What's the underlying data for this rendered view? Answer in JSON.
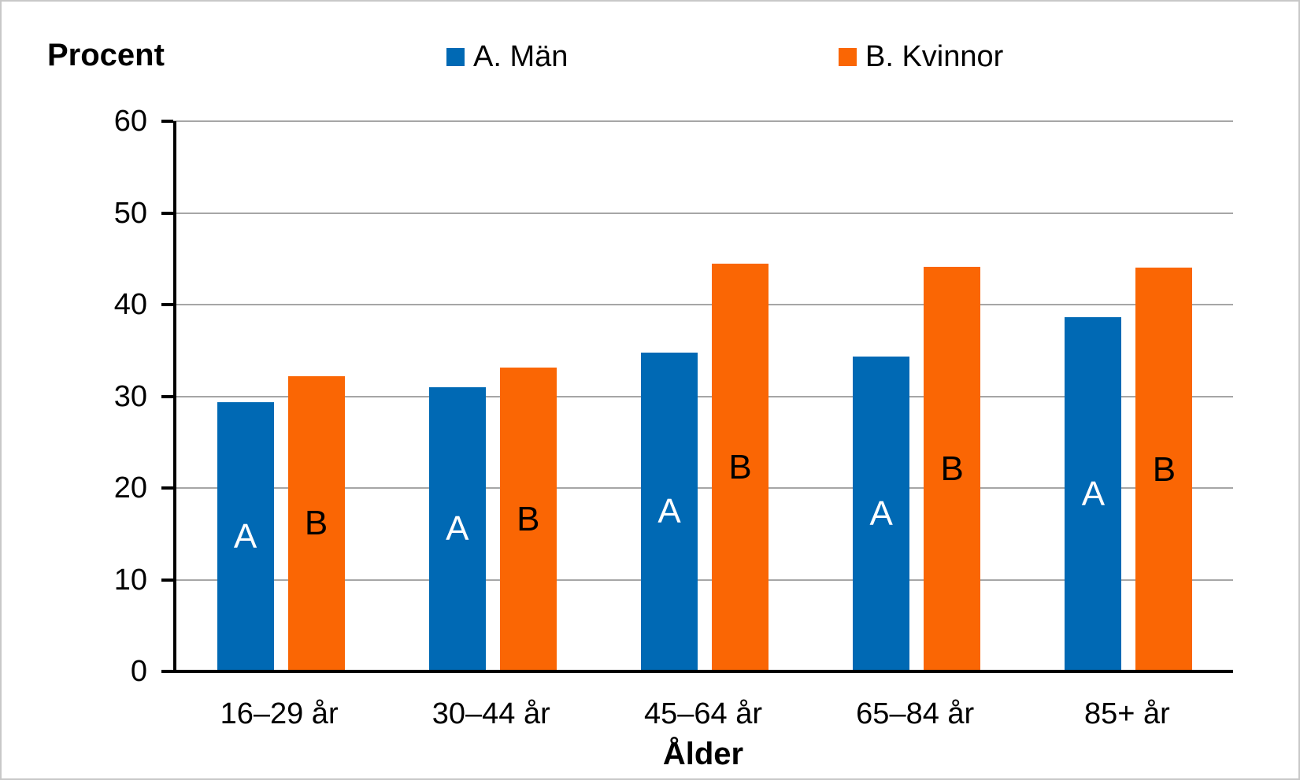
{
  "page": {
    "background": "#ffffff",
    "border_color": "#c8c8c8"
  },
  "chart_data": {
    "type": "bar",
    "y_axis_title": "Procent",
    "xlabel": "Ålder",
    "categories": [
      "16–29 år",
      "30–44 år",
      "45–64 år",
      "65–84 år",
      "85+ år"
    ],
    "series": [
      {
        "name": "A. Män",
        "bar_label": "A",
        "color": "#0069B4",
        "bar_label_color": "#ffffff",
        "values": [
          29.4,
          31.0,
          34.8,
          34.3,
          38.6
        ]
      },
      {
        "name": "B. Kvinnor",
        "bar_label": "B",
        "color": "#FA6604",
        "bar_label_color": "#000000",
        "values": [
          32.2,
          33.1,
          44.5,
          44.1,
          44.0
        ]
      }
    ],
    "ylim": [
      0,
      60
    ],
    "yticks": [
      0,
      10,
      20,
      30,
      40,
      50,
      60
    ],
    "grid": true,
    "gridline_color": "#A6A6A6",
    "axis_color": "#000000",
    "legend_position": "top"
  }
}
